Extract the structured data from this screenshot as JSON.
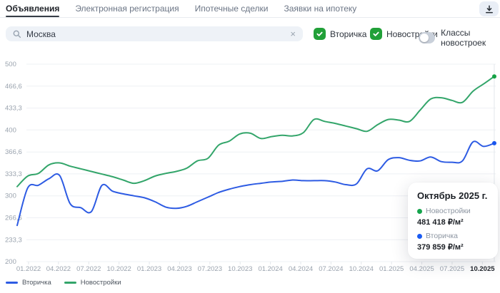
{
  "tabs": {
    "items": [
      {
        "label": "Объявления",
        "active": true
      },
      {
        "label": "Электронная регистрация",
        "active": false
      },
      {
        "label": "Ипотечные сделки",
        "active": false
      },
      {
        "label": "Заявки на ипотеку",
        "active": false
      }
    ]
  },
  "toolbar": {
    "download_icon": "download"
  },
  "filters": {
    "search": {
      "value": "Москва",
      "icon": "search",
      "clear_icon": "×"
    },
    "checkbox_color": "#21a038",
    "checkboxes": [
      {
        "label": "Вторичка",
        "checked": true
      },
      {
        "label": "Новостройки",
        "checked": true
      }
    ],
    "toggle": {
      "label": "Классы новостроек",
      "on": false
    }
  },
  "chart_data": {
    "type": "line",
    "unit": "тыс. ₽/м²",
    "ylim": [
      200,
      500
    ],
    "grid": true,
    "hover_index": 45,
    "x_tick_labels": [
      "01.2022",
      "04.2022",
      "07.2022",
      "10.2022",
      "01.2023",
      "04.2023",
      "07.2023",
      "10.2023",
      "01.2024",
      "04.2024",
      "07.2024",
      "10.2024",
      "01.2025",
      "04.2025",
      "07.2025",
      "10.2025"
    ],
    "y_ticks": [
      {
        "value": 500,
        "label": "500"
      },
      {
        "value": 466.6,
        "label": "466,6"
      },
      {
        "value": 433.3,
        "label": "433,3"
      },
      {
        "value": 400,
        "label": "400"
      },
      {
        "value": 366.6,
        "label": "366,6"
      },
      {
        "value": 333.3,
        "label": "333,3"
      },
      {
        "value": 300,
        "label": "300"
      },
      {
        "value": 266.6,
        "label": "266,6"
      },
      {
        "value": 233.3,
        "label": "233,3"
      },
      {
        "value": 200,
        "label": "200"
      }
    ],
    "x_months": "monthly points from 01.2022 to 10.2025",
    "series": [
      {
        "name": "Вторичка",
        "color": "#2d5be3",
        "dot_color": "#1a56ee",
        "values": [
          255,
          312,
          316,
          326,
          331,
          288,
          282,
          276,
          316,
          307,
          303,
          300,
          297,
          291,
          283,
          281,
          284,
          291,
          298,
          305,
          310,
          314,
          317,
          319,
          321,
          322,
          324,
          323,
          323,
          323,
          321,
          317,
          318,
          341,
          338,
          355,
          358,
          354,
          353,
          359,
          352,
          351,
          353,
          382,
          375,
          379.9
        ]
      },
      {
        "name": "Новостройки",
        "color": "#33a56a",
        "dot_color": "#16a245",
        "values": [
          314,
          330,
          334,
          347,
          350,
          345,
          341,
          337,
          333,
          329,
          324,
          319,
          323,
          330,
          334,
          337,
          342,
          353,
          357,
          377,
          383,
          394,
          395,
          387,
          390,
          392,
          391,
          396,
          416,
          413,
          410,
          406,
          402,
          398,
          408,
          416,
          415,
          413,
          430,
          447,
          449,
          445,
          442,
          459,
          470,
          481.4
        ]
      }
    ]
  },
  "tooltip": {
    "title": "Октябрь 2025 г.",
    "rows": [
      {
        "name": "Новостройки",
        "value": "481 418 ₽/м²",
        "color": "#15a44c"
      },
      {
        "name": "Вторичка",
        "value": "379 859 ₽/м²",
        "color": "#1a5bf2"
      }
    ]
  },
  "legend": {
    "items": [
      {
        "label": "Вторичка",
        "color": "#2d5be3"
      },
      {
        "label": "Новостройки",
        "color": "#33a56a"
      }
    ]
  }
}
